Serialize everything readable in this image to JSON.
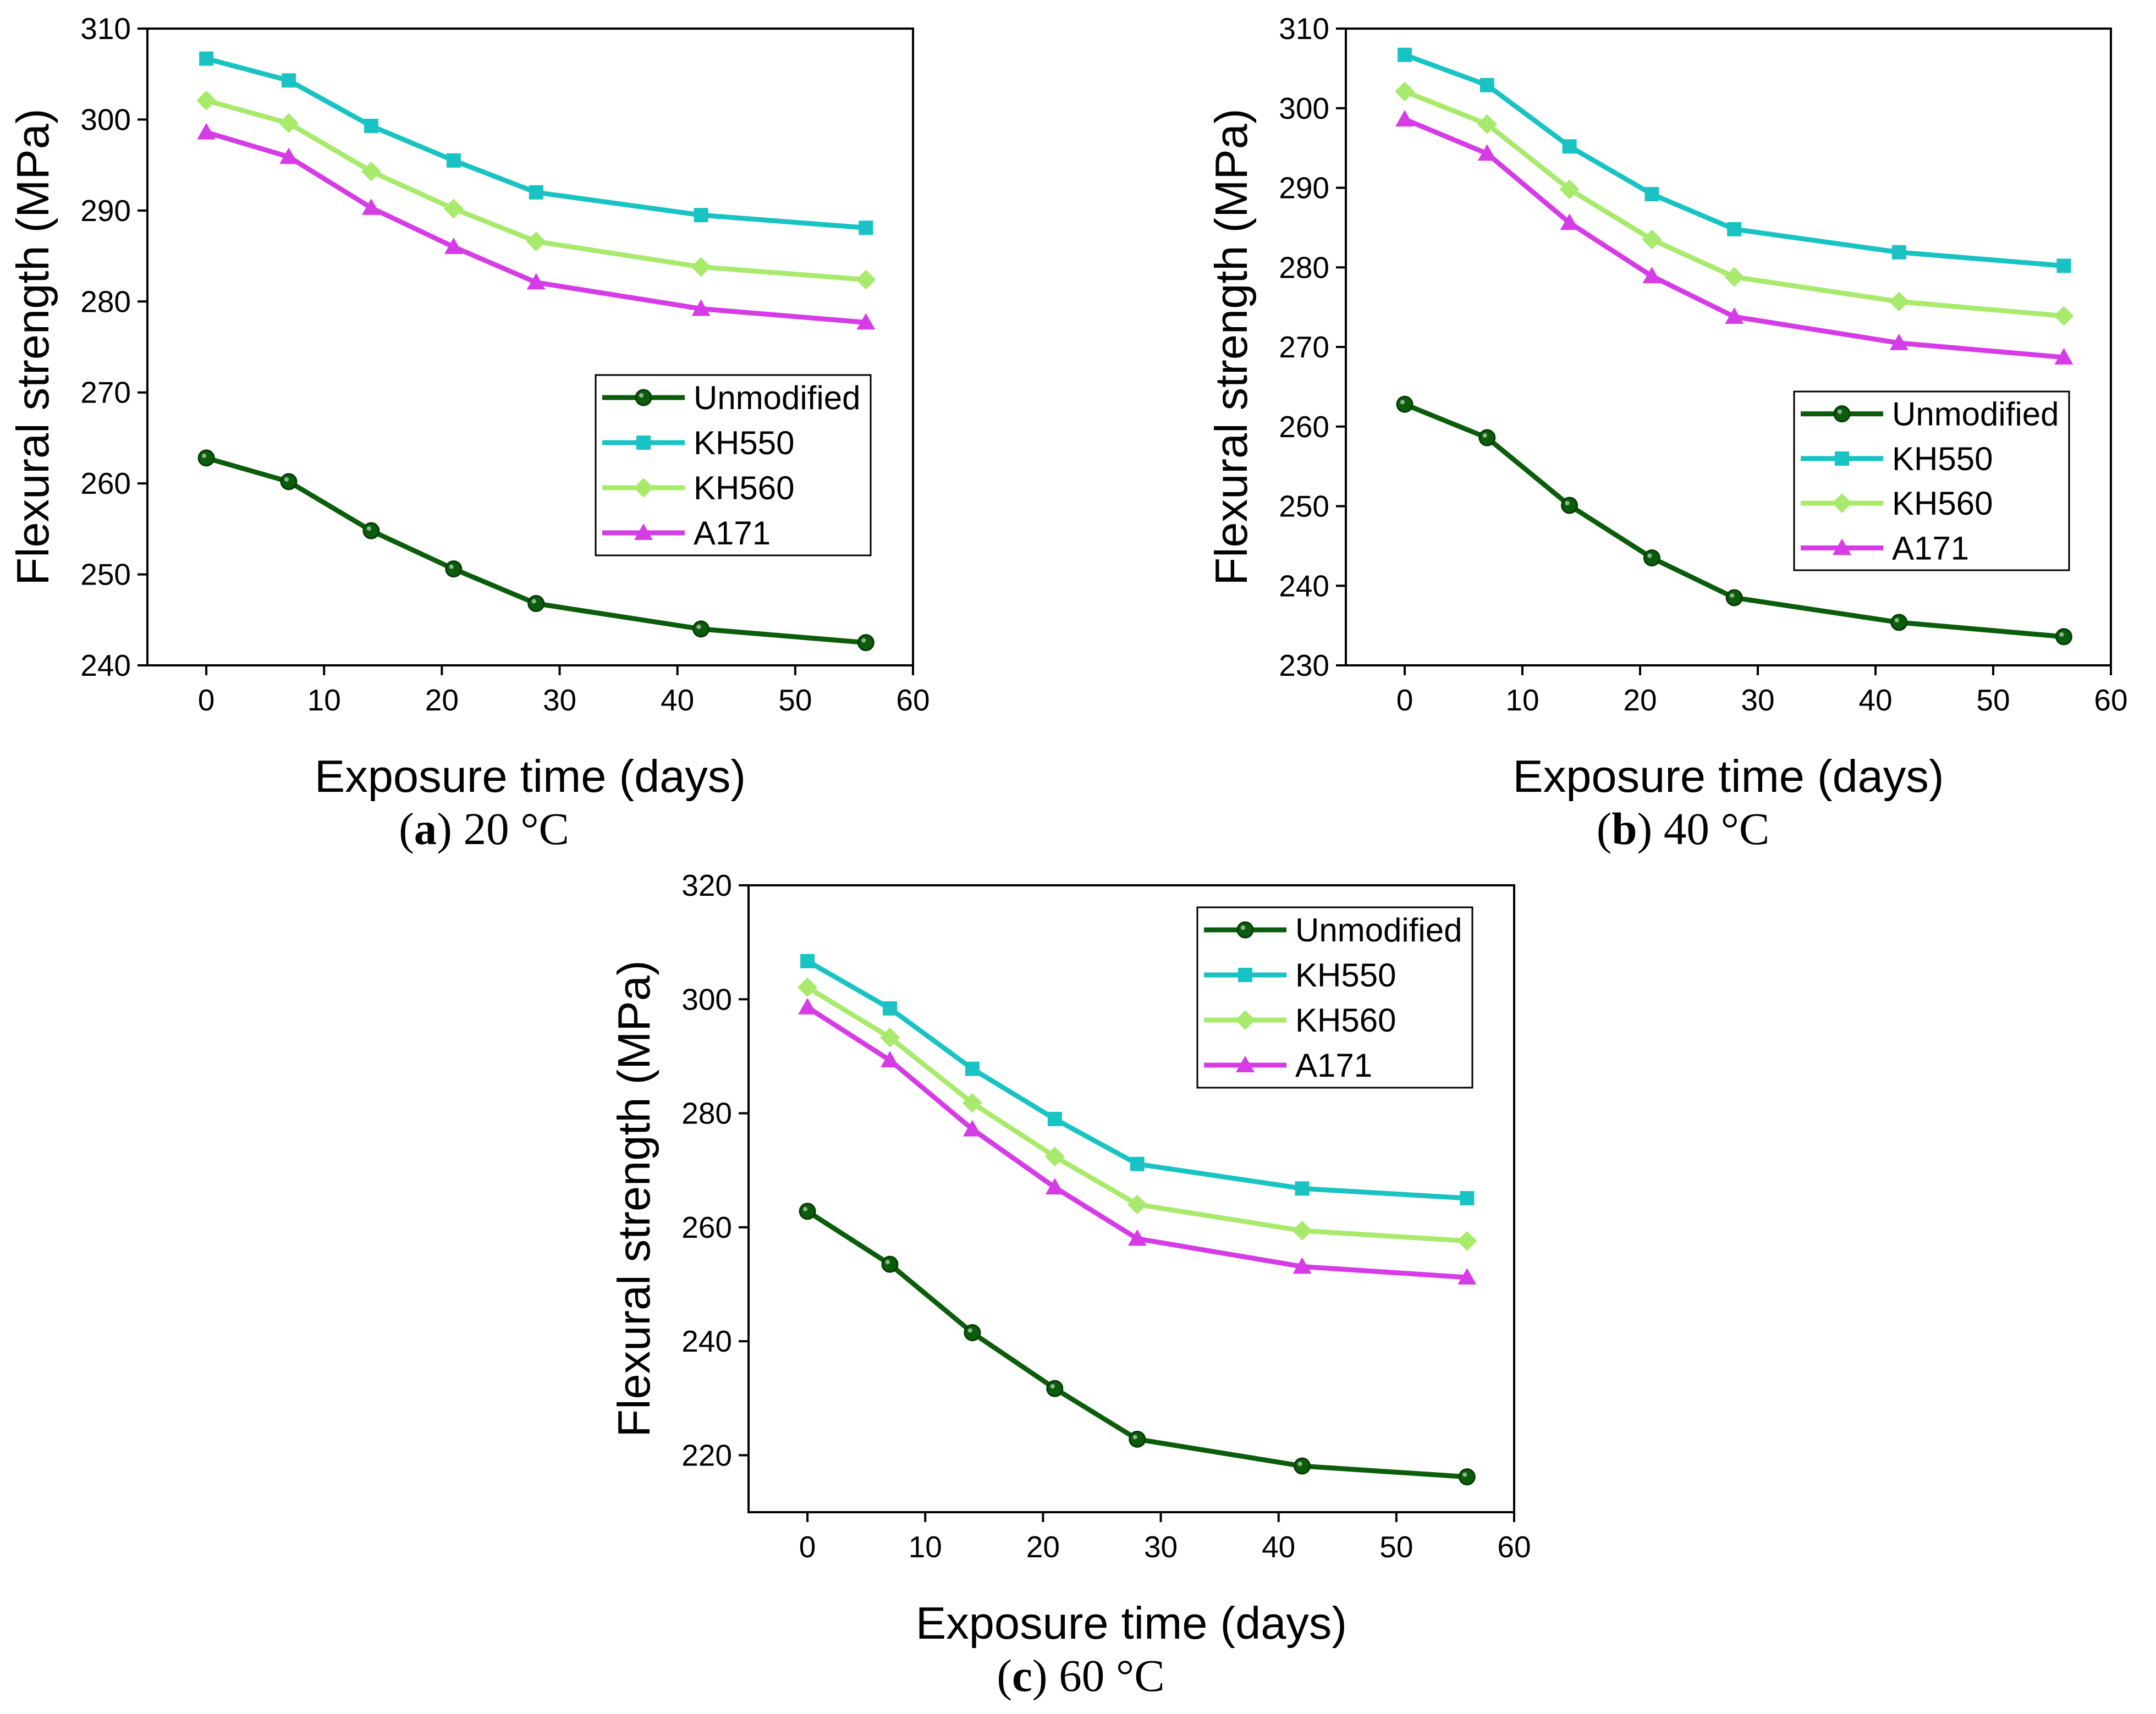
{
  "chart_data": [
    {
      "type": "line",
      "caption": {
        "open": "(",
        "letter": "a",
        "rest": ") 20 °C"
      },
      "xlabel": "Exposure time (days)",
      "ylabel": "Flexural strength (MPa)",
      "xlim": [
        -5,
        60
      ],
      "ylim": [
        240,
        310
      ],
      "xticks": [
        0,
        10,
        20,
        30,
        40,
        50,
        60
      ],
      "yticks": [
        240,
        250,
        260,
        270,
        280,
        290,
        300,
        310
      ],
      "legend_position": "middle-right",
      "x": [
        0,
        7,
        14,
        21,
        28,
        42,
        56
      ],
      "series": [
        {
          "name": "Unmodified",
          "values": [
            262.8,
            260.2,
            254.8,
            250.6,
            246.8,
            244.0,
            242.5
          ]
        },
        {
          "name": "KH550",
          "values": [
            306.7,
            304.3,
            299.3,
            295.5,
            292.0,
            289.5,
            288.1
          ]
        },
        {
          "name": "KH560",
          "values": [
            302.1,
            299.6,
            294.3,
            290.2,
            286.6,
            283.8,
            282.4
          ]
        },
        {
          "name": "A171",
          "values": [
            298.6,
            295.9,
            290.3,
            286.0,
            282.1,
            279.2,
            277.7
          ]
        }
      ]
    },
    {
      "type": "line",
      "caption": {
        "open": "(",
        "letter": "b",
        "rest": ") 40 °C"
      },
      "xlabel": "Exposure time (days)",
      "ylabel": "Flexural strength (MPa)",
      "xlim": [
        -5,
        60
      ],
      "ylim": [
        230,
        310
      ],
      "xticks": [
        0,
        10,
        20,
        30,
        40,
        50,
        60
      ],
      "yticks": [
        230,
        240,
        250,
        260,
        270,
        280,
        290,
        300,
        310
      ],
      "legend_position": "middle-right",
      "x": [
        0,
        7,
        14,
        21,
        28,
        42,
        56
      ],
      "series": [
        {
          "name": "Unmodified",
          "values": [
            262.8,
            258.6,
            250.1,
            243.5,
            238.5,
            235.4,
            233.6
          ]
        },
        {
          "name": "KH550",
          "values": [
            306.7,
            302.9,
            295.2,
            289.2,
            284.8,
            281.9,
            280.2
          ]
        },
        {
          "name": "KH560",
          "values": [
            302.1,
            298.0,
            289.8,
            283.5,
            278.8,
            275.7,
            273.9
          ]
        },
        {
          "name": "A171",
          "values": [
            298.6,
            294.3,
            285.6,
            278.9,
            273.8,
            270.5,
            268.7
          ]
        }
      ]
    },
    {
      "type": "line",
      "caption": {
        "open": "(",
        "letter": "c",
        "rest": ") 60 °C"
      },
      "xlabel": "Exposure time (days)",
      "ylabel": "Flexural strength (MPa)",
      "xlim": [
        -5,
        60
      ],
      "ylim": [
        210,
        320
      ],
      "xticks": [
        0,
        10,
        20,
        30,
        40,
        50,
        60
      ],
      "yticks": [
        220,
        240,
        260,
        280,
        300,
        320
      ],
      "legend_position": "top-right",
      "x": [
        0,
        7,
        14,
        21,
        28,
        42,
        56
      ],
      "series": [
        {
          "name": "Unmodified",
          "values": [
            262.8,
            253.5,
            241.5,
            231.7,
            222.8,
            218.1,
            216.2
          ]
        },
        {
          "name": "KH550",
          "values": [
            306.7,
            298.4,
            287.8,
            279.0,
            271.1,
            266.8,
            265.1
          ]
        },
        {
          "name": "KH560",
          "values": [
            302.1,
            293.3,
            281.8,
            272.4,
            264.0,
            259.4,
            257.6
          ]
        },
        {
          "name": "A171",
          "values": [
            298.6,
            289.3,
            277.2,
            267.0,
            258.0,
            253.1,
            251.2
          ]
        }
      ]
    }
  ],
  "series_styles": [
    {
      "color": "#0b5d0b",
      "marker": "circle"
    },
    {
      "color": "#19c3c3",
      "marker": "square"
    },
    {
      "color": "#a8ea6c",
      "marker": "diamond"
    },
    {
      "color": "#d63ce6",
      "marker": "triangle"
    }
  ]
}
